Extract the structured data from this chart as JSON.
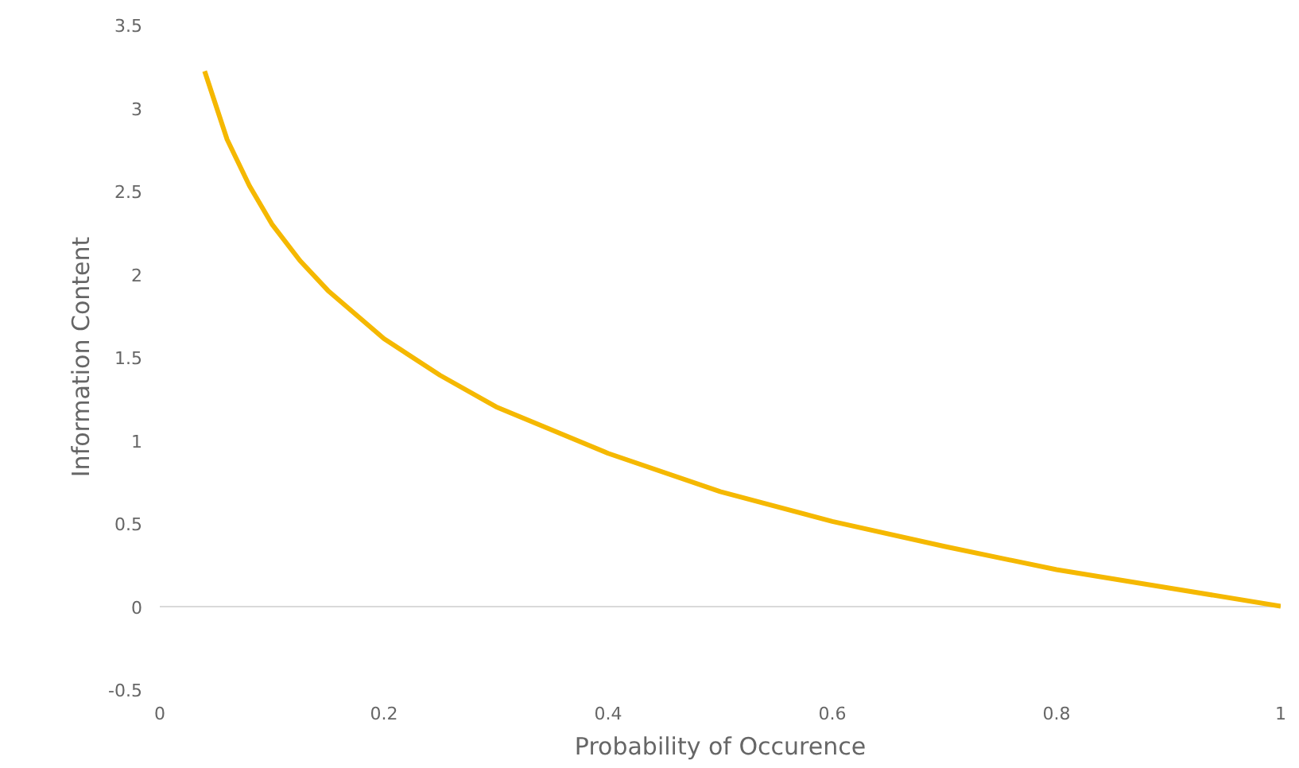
{
  "chart_data": {
    "type": "line",
    "xlabel": "Probability of Occurence",
    "ylabel": "Information Content",
    "color": "#f5b800",
    "x": [
      0.04,
      0.06,
      0.08,
      0.1,
      0.125,
      0.15,
      0.2,
      0.25,
      0.3,
      0.4,
      0.5,
      0.6,
      0.7,
      0.8,
      0.9,
      1
    ],
    "values": [
      3.22,
      2.81,
      2.53,
      2.3,
      2.08,
      1.9,
      1.61,
      1.39,
      1.2,
      0.92,
      0.69,
      0.51,
      0.36,
      0.22,
      0.11,
      0
    ],
    "xlim": [
      0,
      1
    ],
    "ylim": [
      -0.5,
      3.5
    ],
    "xticks": [
      0,
      0.2,
      0.4,
      0.6,
      0.8,
      1
    ],
    "yticks": [
      -0.5,
      0,
      0.5,
      1,
      1.5,
      2,
      2.5,
      3,
      3.5
    ]
  }
}
